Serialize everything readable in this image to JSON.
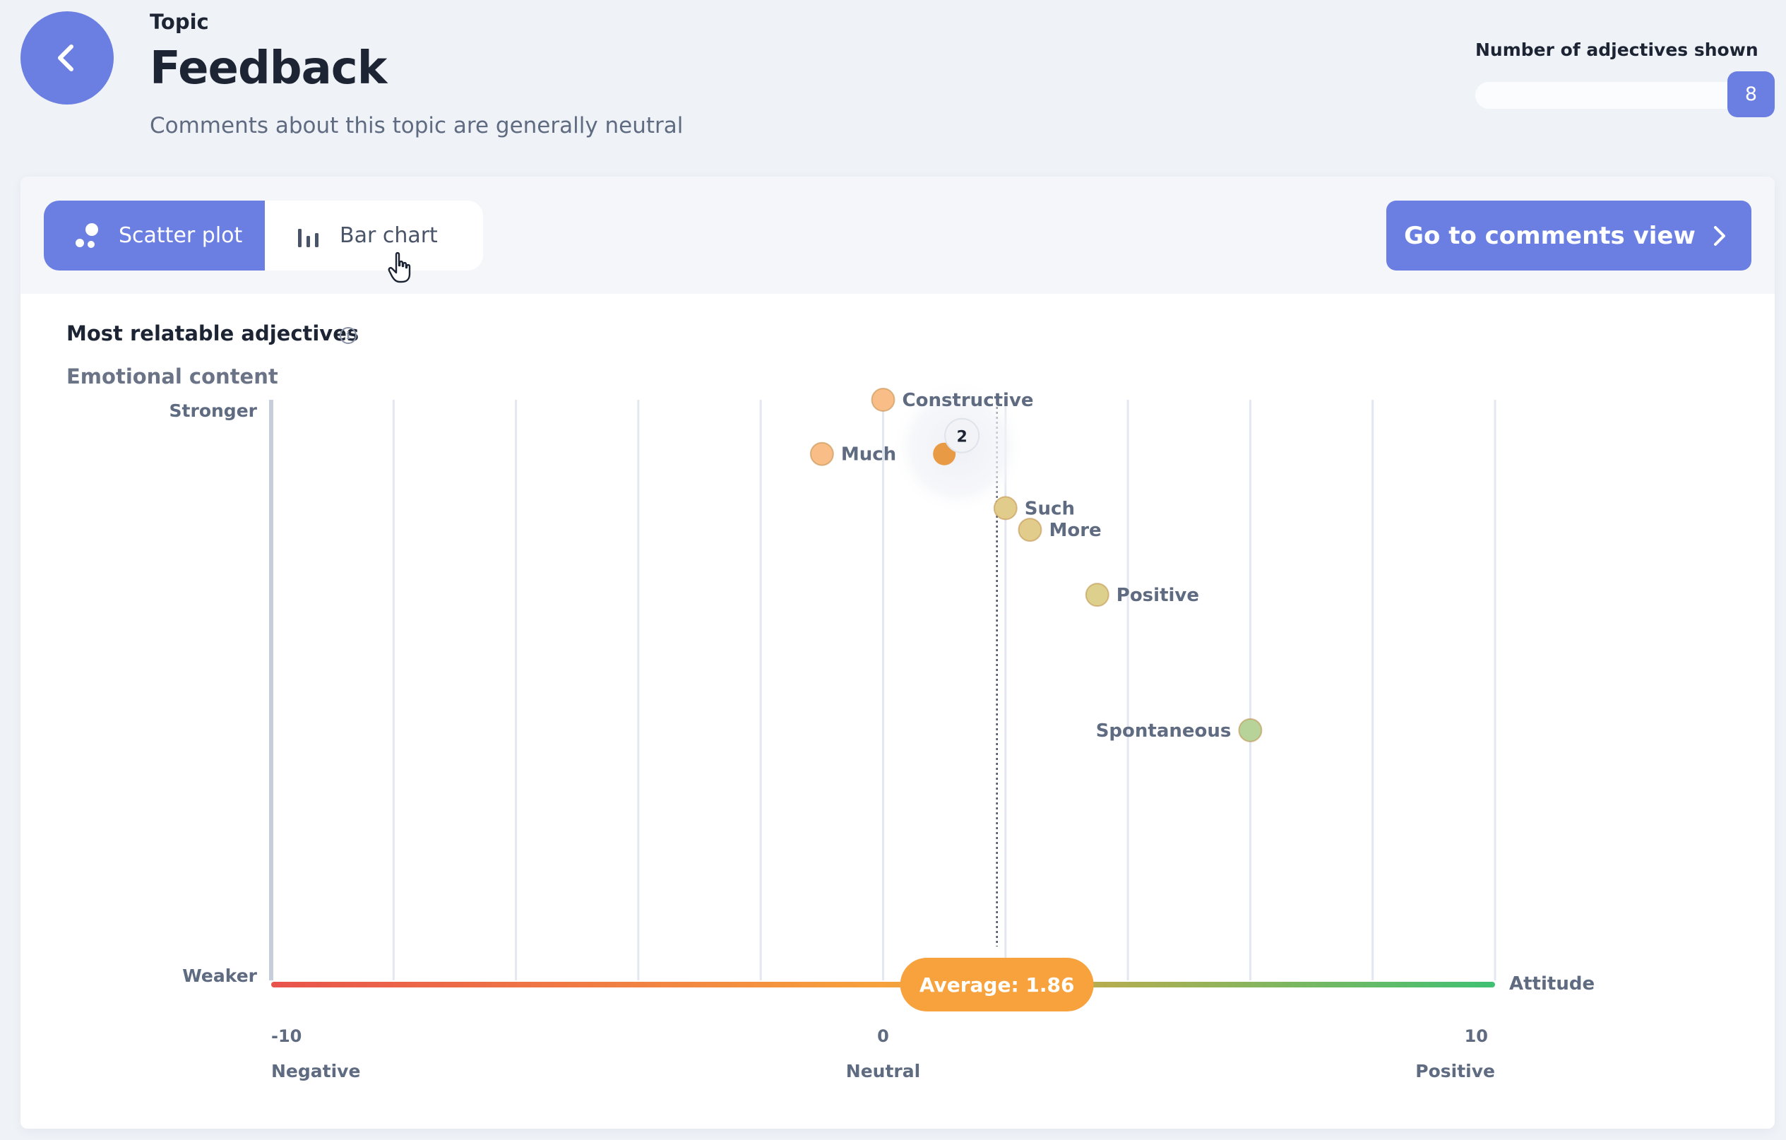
{
  "header": {
    "topic_label": "Topic",
    "title": "Feedback",
    "subtitle": "Comments about this topic are generally neutral",
    "adjectives_label": "Number of adjectives shown",
    "adjectives_count": "8"
  },
  "toolbar": {
    "scatter_label": "Scatter plot",
    "bar_label": "Bar chart",
    "active_tab": "scatter",
    "go_comments_label": "Go to comments view"
  },
  "section": {
    "title": "Most relatable adjectives",
    "y_axis_title": "Emotional content"
  },
  "colors": {
    "accent": "#6b7fe3",
    "average_badge": "#f7a23c",
    "negative": "#e8534c",
    "neutral": "#f7a23c",
    "positive": "#3fc173"
  },
  "icons": [
    "chevron-left-icon",
    "scatter-icon",
    "bar-chart-icon",
    "chevron-right-icon",
    "info-icon",
    "pointer-hand-icon"
  ],
  "chart_data": {
    "type": "scatter",
    "x_axis": {
      "range": [
        -10,
        10
      ],
      "tick_labels": [
        "-10",
        "0",
        "10"
      ],
      "category_labels": [
        "Negative",
        "Neutral",
        "Positive"
      ],
      "title": "Attitude"
    },
    "y_axis": {
      "top_label": "Stronger",
      "bottom_label": "Weaker",
      "range": [
        0,
        1
      ]
    },
    "grid": true,
    "average": {
      "value": 1.86,
      "label": "Average: 1.86"
    },
    "points": [
      {
        "label": "Constructive",
        "x": 0,
        "y": 1.0,
        "color": "#f9bd88",
        "label_side": "right"
      },
      {
        "label": "Much",
        "x": -1,
        "y": 0.9,
        "color": "#f9bd88",
        "label_side": "right"
      },
      {
        "label": "",
        "x": 1,
        "y": 0.9,
        "color": "#e89a45",
        "cluster_count": "2"
      },
      {
        "label": "Such",
        "x": 2,
        "y": 0.8,
        "color": "#e2cc8c",
        "label_side": "right"
      },
      {
        "label": "More",
        "x": 2.4,
        "y": 0.76,
        "color": "#e2cc8c",
        "label_side": "right"
      },
      {
        "label": "Positive",
        "x": 3.5,
        "y": 0.64,
        "color": "#dcd08c",
        "label_side": "right"
      },
      {
        "label": "Spontaneous",
        "x": 6,
        "y": 0.39,
        "color": "#b7d39a",
        "label_side": "left"
      }
    ]
  }
}
